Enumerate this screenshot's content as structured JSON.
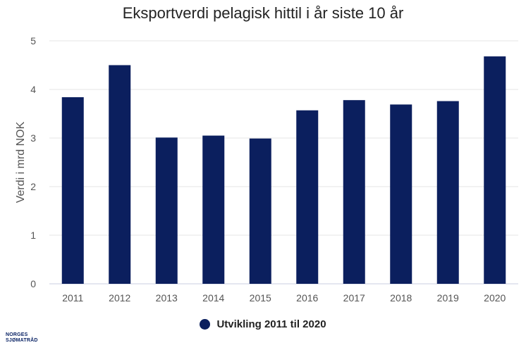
{
  "chart_data": {
    "type": "bar",
    "title": "Eksportverdi pelagisk hittil i år siste 10 år",
    "xlabel": "",
    "ylabel": "Verdi i mrd NOK",
    "categories": [
      "2011",
      "2012",
      "2013",
      "2014",
      "2015",
      "2016",
      "2017",
      "2018",
      "2019",
      "2020"
    ],
    "series": [
      {
        "name": "Utvikling 2011 til 2020",
        "values": [
          3.84,
          4.5,
          3.01,
          3.05,
          2.99,
          3.57,
          3.78,
          3.69,
          3.76,
          4.68
        ],
        "color": "#0b1f5e"
      }
    ],
    "ylim": [
      0,
      5
    ],
    "yticks": [
      0,
      1,
      2,
      3,
      4,
      5
    ],
    "grid": true,
    "legend_position": "bottom"
  },
  "logo": {
    "line1": "NORGES",
    "line2": "SJØMATRÅD"
  }
}
